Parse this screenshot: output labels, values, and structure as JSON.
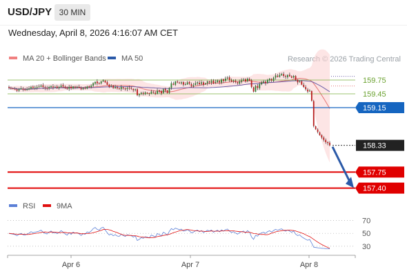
{
  "header": {
    "pair": "USD/JPY",
    "timeframe": "30 MIN"
  },
  "datetime": "Wednesday, April 8, 2026 4:16:07 AM CET",
  "legend": {
    "bollinger": {
      "label": "MA 20 + Bollinger Bands",
      "color": "#f08080"
    },
    "ma50": {
      "label": "MA 50",
      "color": "#2b5aa8"
    },
    "rsi": {
      "label": "RSI",
      "color": "#5b7fd6"
    },
    "rsi_ma": {
      "label": "9MA",
      "color": "#e01010"
    }
  },
  "credit": "Research © 2026 Trading Central",
  "colors": {
    "up": "#2e7d32",
    "down": "#b71c1c",
    "resistance": "#7cb342",
    "pivot": "#1565c0",
    "support": "#e00000",
    "current": "#222222",
    "arrow": "#2b5aa8"
  },
  "chart_data": [
    {
      "type": "candlestick",
      "y_range": [
        156.9,
        160.2
      ],
      "x_ticks": [
        "Apr 6",
        "Apr 7",
        "Apr 8"
      ],
      "levels": [
        {
          "value": 159.75,
          "label": "159.75",
          "kind": "resistance"
        },
        {
          "value": 159.45,
          "label": "159.45",
          "kind": "resistance"
        },
        {
          "value": 159.15,
          "label": "159.15",
          "kind": "pivot"
        },
        {
          "value": 158.33,
          "label": "158.33",
          "kind": "current"
        },
        {
          "value": 157.75,
          "label": "157.75",
          "kind": "support"
        },
        {
          "value": 157.4,
          "label": "157.40",
          "kind": "support"
        }
      ],
      "closes": [
        159.58,
        159.57,
        159.56,
        159.55,
        159.52,
        159.55,
        159.57,
        159.54,
        159.53,
        159.55,
        159.57,
        159.6,
        159.58,
        159.59,
        159.6,
        159.61,
        159.63,
        159.6,
        159.58,
        159.57,
        159.6,
        159.62,
        159.59,
        159.6,
        159.58,
        159.6,
        159.63,
        159.61,
        159.58,
        159.56,
        159.6,
        159.57,
        159.61,
        159.59,
        159.6,
        159.58,
        159.55,
        159.58,
        159.57,
        159.61,
        159.6,
        159.63,
        159.68,
        159.71,
        159.68,
        159.67,
        159.72,
        159.74,
        159.7,
        159.65,
        159.6,
        159.62,
        159.58,
        159.6,
        159.57,
        159.56,
        159.6,
        159.57,
        159.55,
        159.58,
        159.57,
        159.56,
        159.53,
        159.55,
        159.42,
        159.44,
        159.47,
        159.45,
        159.48,
        159.47,
        159.45,
        159.5,
        159.48,
        159.45,
        159.52,
        159.5,
        159.46,
        159.55,
        159.52,
        159.47,
        159.58,
        159.68,
        159.65,
        159.72,
        159.7,
        159.68,
        159.7,
        159.65,
        159.66,
        159.7,
        159.67,
        159.62,
        159.64,
        159.68,
        159.7,
        159.66,
        159.7,
        159.65,
        159.68,
        159.72,
        159.7,
        159.73,
        159.68,
        159.71,
        159.74,
        159.7,
        159.76,
        159.73,
        159.78,
        159.8,
        159.75,
        159.72,
        159.74,
        159.71,
        159.68,
        159.72,
        159.74,
        159.76,
        159.72,
        159.78,
        159.74,
        159.6,
        159.5,
        159.62,
        159.58,
        159.66,
        159.7,
        159.72,
        159.68,
        159.75,
        159.78,
        159.74,
        159.8,
        159.85,
        159.82,
        159.86,
        159.88,
        159.84,
        159.82,
        159.86,
        159.83,
        159.8,
        159.84,
        159.75,
        159.7,
        159.72,
        159.65,
        159.6,
        159.55,
        159.5,
        159.52,
        159.3,
        158.75,
        158.68,
        158.62,
        158.55,
        158.5,
        158.45,
        158.4,
        158.38,
        158.33
      ],
      "rsi": {
        "y_range": [
          16,
          78
        ],
        "ticks": [
          70,
          50,
          30
        ],
        "ticks_label": [
          "70",
          "50",
          "30"
        ]
      }
    }
  ]
}
